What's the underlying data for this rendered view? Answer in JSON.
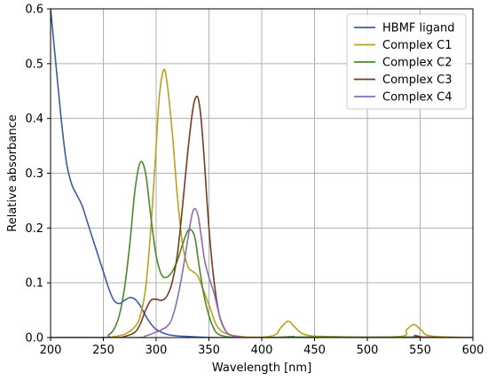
{
  "chart_data": {
    "type": "line",
    "title": "",
    "xlabel": "Wavelength [nm]",
    "ylabel": "Relative absorbance",
    "xlim": [
      200,
      600
    ],
    "ylim": [
      0,
      0.6
    ],
    "xticks": [
      200,
      250,
      300,
      350,
      400,
      450,
      500,
      550,
      600
    ],
    "yticks": [
      0.0,
      0.1,
      0.2,
      0.3,
      0.4,
      0.5,
      0.6
    ],
    "xtick_labels": [
      "200",
      "250",
      "300",
      "350",
      "400",
      "450",
      "500",
      "550",
      "600"
    ],
    "ytick_labels": [
      "0.0",
      "0.1",
      "0.2",
      "0.3",
      "0.4",
      "0.5",
      "0.6"
    ],
    "grid": true,
    "legend_position": "top-right",
    "series": [
      {
        "name": "HBMF ligand",
        "color": "#3a5ba8",
        "x": [
          200,
          205,
          210,
          215,
          220,
          225,
          230,
          235,
          240,
          245,
          250,
          255,
          260,
          265,
          270,
          275,
          280,
          285,
          290,
          295,
          300,
          310,
          320,
          330,
          340,
          360,
          400,
          500,
          600
        ],
        "y": [
          0.6,
          0.5,
          0.4,
          0.32,
          0.28,
          0.26,
          0.24,
          0.21,
          0.18,
          0.15,
          0.12,
          0.09,
          0.068,
          0.062,
          0.068,
          0.073,
          0.07,
          0.058,
          0.04,
          0.025,
          0.015,
          0.006,
          0.003,
          0.002,
          0.001,
          0.0,
          0.0,
          0.0,
          0.0
        ]
      },
      {
        "name": "Complex C1",
        "color": "#b8a31c",
        "x": [
          200,
          250,
          260,
          270,
          280,
          285,
          290,
          295,
          300,
          303,
          307,
          310,
          315,
          320,
          325,
          330,
          335,
          340,
          350,
          360,
          380,
          410,
          418,
          425,
          432,
          440,
          460,
          530,
          537,
          544,
          551,
          560,
          600
        ],
        "y": [
          0.0,
          0.0,
          0.002,
          0.006,
          0.02,
          0.04,
          0.09,
          0.2,
          0.35,
          0.44,
          0.488,
          0.47,
          0.38,
          0.26,
          0.17,
          0.13,
          0.12,
          0.11,
          0.06,
          0.015,
          0.002,
          0.003,
          0.018,
          0.03,
          0.018,
          0.006,
          0.002,
          0.002,
          0.014,
          0.024,
          0.014,
          0.003,
          0.0
        ]
      },
      {
        "name": "Complex C2",
        "color": "#4a8a2a",
        "x": [
          200,
          250,
          255,
          260,
          265,
          270,
          275,
          280,
          285,
          290,
          295,
          300,
          305,
          310,
          315,
          320,
          325,
          330,
          334,
          337,
          340,
          345,
          350,
          355,
          360,
          370,
          380,
          400,
          420,
          430,
          440,
          540,
          545,
          550,
          600
        ],
        "y": [
          0.0,
          0.0,
          0.005,
          0.015,
          0.04,
          0.09,
          0.17,
          0.27,
          0.32,
          0.3,
          0.22,
          0.15,
          0.115,
          0.11,
          0.12,
          0.14,
          0.17,
          0.195,
          0.195,
          0.18,
          0.14,
          0.08,
          0.04,
          0.015,
          0.005,
          0.001,
          0.0,
          0.0,
          0.001,
          0.002,
          0.001,
          0.001,
          0.004,
          0.001,
          0.0
        ]
      },
      {
        "name": "Complex C3",
        "color": "#7a3a22",
        "x": [
          200,
          260,
          270,
          280,
          285,
          290,
          295,
          300,
          305,
          310,
          315,
          320,
          325,
          330,
          335,
          339,
          342,
          345,
          350,
          355,
          360,
          365,
          370,
          380,
          400,
          540,
          545,
          550,
          600
        ],
        "y": [
          0.0,
          0.0,
          0.002,
          0.01,
          0.025,
          0.05,
          0.068,
          0.07,
          0.068,
          0.075,
          0.1,
          0.15,
          0.24,
          0.34,
          0.42,
          0.44,
          0.41,
          0.34,
          0.2,
          0.1,
          0.04,
          0.015,
          0.005,
          0.001,
          0.0,
          0.0,
          0.003,
          0.001,
          0.0
        ]
      },
      {
        "name": "Complex C4",
        "color": "#8c6bb8",
        "x": [
          200,
          280,
          290,
          300,
          310,
          315,
          320,
          325,
          330,
          334,
          337,
          340,
          343,
          346,
          350,
          355,
          360,
          365,
          370,
          380,
          400,
          600
        ],
        "y": [
          0.0,
          0.0,
          0.003,
          0.01,
          0.02,
          0.035,
          0.07,
          0.12,
          0.18,
          0.225,
          0.235,
          0.22,
          0.18,
          0.14,
          0.11,
          0.08,
          0.04,
          0.015,
          0.005,
          0.001,
          0.0,
          0.0
        ]
      }
    ]
  }
}
